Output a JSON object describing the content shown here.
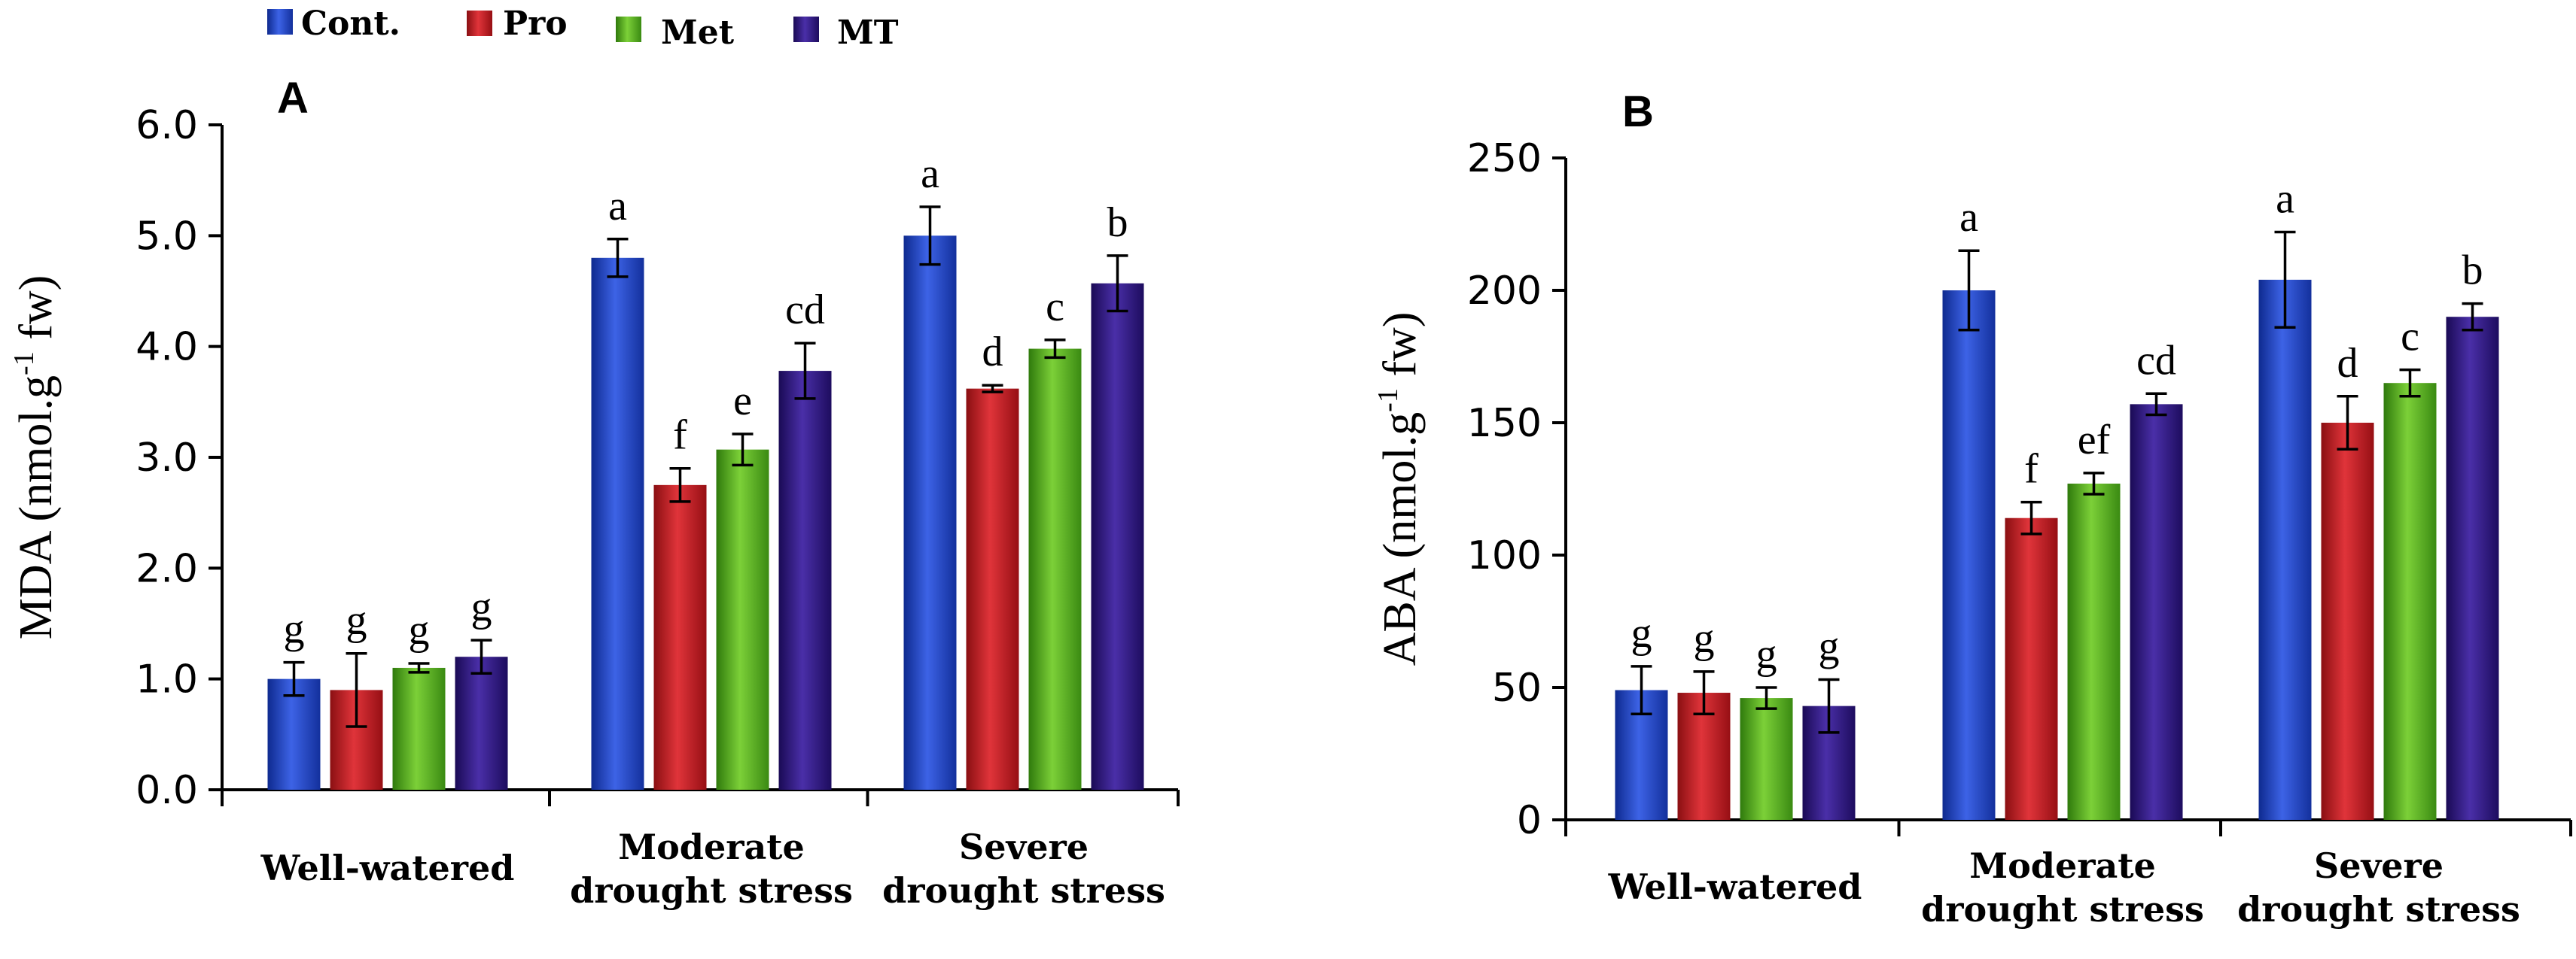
{
  "legend": {
    "items": [
      {
        "name": "Cont.",
        "color": "#1f3db8"
      },
      {
        "name": "Pro",
        "color": "#b3191c"
      },
      {
        "name": "Met",
        "color": "#4ca31c"
      },
      {
        "name": "MT",
        "color": "#2a1578"
      }
    ]
  },
  "chart_data": [
    {
      "type": "bar",
      "panel": "A",
      "ylabel_main": "MDA (nmol.g",
      "ylabel_sup": "-1",
      "ylabel_end": " fw)",
      "ylim": [
        0,
        6
      ],
      "yticks": [
        "0.0",
        "1.0",
        "2.0",
        "3.0",
        "4.0",
        "5.0",
        "6.0"
      ],
      "categories": [
        [
          "Well-watered"
        ],
        [
          "Moderate",
          "drought stress"
        ],
        [
          "Severe",
          "drought stress"
        ]
      ],
      "series": [
        {
          "name": "Cont.",
          "values": [
            1.0,
            4.8,
            5.0
          ],
          "errors": [
            0.15,
            0.17,
            0.26
          ],
          "letters": [
            "g",
            "a",
            "a"
          ]
        },
        {
          "name": "Pro",
          "values": [
            0.9,
            2.75,
            3.62
          ],
          "errors": [
            0.33,
            0.15,
            0.03
          ],
          "letters": [
            "g",
            "f",
            "d"
          ]
        },
        {
          "name": "Met",
          "values": [
            1.1,
            3.07,
            3.98
          ],
          "errors": [
            0.04,
            0.14,
            0.08
          ],
          "letters": [
            "g",
            "e",
            "c"
          ]
        },
        {
          "name": "MT",
          "values": [
            1.2,
            3.78,
            4.57
          ],
          "errors": [
            0.15,
            0.25,
            0.25
          ],
          "letters": [
            "g",
            "cd",
            "b"
          ]
        }
      ]
    },
    {
      "type": "bar",
      "panel": "B",
      "ylabel_main": "ABA (nmol.g",
      "ylabel_sup": "-1",
      "ylabel_end": " fw)",
      "ylim": [
        0,
        250
      ],
      "yticks": [
        "0",
        "50",
        "100",
        "150",
        "200",
        "250"
      ],
      "categories": [
        [
          "Well-watered"
        ],
        [
          "Moderate",
          "drought stress"
        ],
        [
          "Severe",
          "drought stress"
        ]
      ],
      "series": [
        {
          "name": "Cont.",
          "values": [
            49,
            200,
            204
          ],
          "errors": [
            9,
            15,
            18
          ],
          "letters": [
            "g",
            "a",
            "a"
          ]
        },
        {
          "name": "Pro",
          "values": [
            48,
            114,
            150
          ],
          "errors": [
            8,
            6,
            10
          ],
          "letters": [
            "g",
            "f",
            "d"
          ]
        },
        {
          "name": "Met",
          "values": [
            46,
            127,
            165
          ],
          "errors": [
            4,
            4,
            5
          ],
          "letters": [
            "g",
            "ef",
            "c"
          ]
        },
        {
          "name": "MT",
          "values": [
            43,
            157,
            190
          ],
          "errors": [
            10,
            4,
            5
          ],
          "letters": [
            "g",
            "cd",
            "b"
          ]
        }
      ]
    }
  ]
}
